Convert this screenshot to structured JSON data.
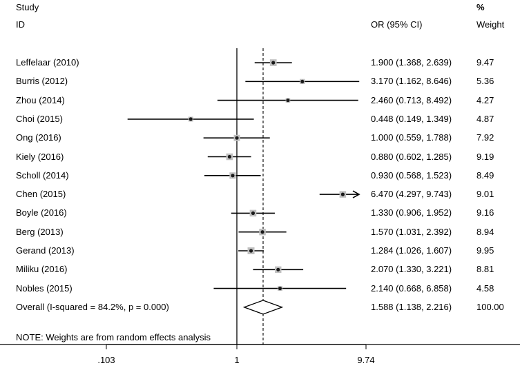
{
  "header": {
    "study_line1": "Study",
    "study_line2": "ID",
    "or_label": "OR (95% CI)",
    "pct_label": "%",
    "weight_label": "Weight"
  },
  "note": "NOTE: Weights are from random effects analysis",
  "chart_data": {
    "type": "forest",
    "scale": "log",
    "null_value": 1,
    "overall_line_value": 1.588,
    "x_axis_ticks": [
      {
        "value": 0.103,
        "label": ".103"
      },
      {
        "value": 1,
        "label": "1"
      },
      {
        "value": 9.74,
        "label": "9.74"
      }
    ],
    "xlim": [
      0.103,
      9.74
    ],
    "studies": [
      {
        "id": "Leffelaar (2010)",
        "or": 1.9,
        "lo": 1.368,
        "hi": 2.639,
        "ci_text": "1.900 (1.368, 2.639)",
        "weight": 9.47,
        "weight_text": "9.47"
      },
      {
        "id": "Burris (2012)",
        "or": 3.17,
        "lo": 1.162,
        "hi": 8.646,
        "ci_text": "3.170 (1.162, 8.646)",
        "weight": 5.36,
        "weight_text": "5.36"
      },
      {
        "id": "Zhou (2014)",
        "or": 2.46,
        "lo": 0.713,
        "hi": 8.492,
        "ci_text": "2.460 (0.713, 8.492)",
        "weight": 4.27,
        "weight_text": "4.27"
      },
      {
        "id": "Choi (2015)",
        "or": 0.448,
        "lo": 0.149,
        "hi": 1.349,
        "ci_text": "0.448 (0.149, 1.349)",
        "weight": 4.87,
        "weight_text": "4.87"
      },
      {
        "id": "Ong (2016)",
        "or": 1.0,
        "lo": 0.559,
        "hi": 1.788,
        "ci_text": "1.000 (0.559, 1.788)",
        "weight": 7.92,
        "weight_text": "7.92"
      },
      {
        "id": "Kiely (2016)",
        "or": 0.88,
        "lo": 0.602,
        "hi": 1.285,
        "ci_text": "0.880 (0.602, 1.285)",
        "weight": 9.19,
        "weight_text": "9.19"
      },
      {
        "id": "Scholl (2014)",
        "or": 0.93,
        "lo": 0.568,
        "hi": 1.523,
        "ci_text": "0.930 (0.568, 1.523)",
        "weight": 8.49,
        "weight_text": "8.49"
      },
      {
        "id": "Chen (2015)",
        "or": 6.47,
        "lo": 4.297,
        "hi": 9.743,
        "ci_text": "6.470 (4.297, 9.743)",
        "weight": 9.01,
        "weight_text": "9.01",
        "arrow_right": true
      },
      {
        "id": "Boyle (2016)",
        "or": 1.33,
        "lo": 0.906,
        "hi": 1.952,
        "ci_text": "1.330 (0.906, 1.952)",
        "weight": 9.16,
        "weight_text": "9.16"
      },
      {
        "id": "Berg (2013)",
        "or": 1.57,
        "lo": 1.031,
        "hi": 2.392,
        "ci_text": "1.570 (1.031, 2.392)",
        "weight": 8.94,
        "weight_text": "8.94"
      },
      {
        "id": "Gerand (2013)",
        "or": 1.284,
        "lo": 1.026,
        "hi": 1.607,
        "ci_text": "1.284 (1.026, 1.607)",
        "weight": 9.95,
        "weight_text": "9.95"
      },
      {
        "id": "Miliku (2016)",
        "or": 2.07,
        "lo": 1.33,
        "hi": 3.221,
        "ci_text": "2.070 (1.330, 3.221)",
        "weight": 8.81,
        "weight_text": "8.81"
      },
      {
        "id": "Nobles (2015)",
        "or": 2.14,
        "lo": 0.668,
        "hi": 6.858,
        "ci_text": "2.140 (0.668, 6.858)",
        "weight": 4.58,
        "weight_text": "4.58"
      }
    ],
    "overall": {
      "label": "Overall  (I-squared = 84.2%, p = 0.000)",
      "or": 1.588,
      "lo": 1.138,
      "hi": 2.216,
      "ci_text": "1.588 (1.138, 2.216)",
      "weight_text": "100.00"
    }
  },
  "colors": {
    "line": "#000000",
    "box_fill": "#c0c0c0",
    "point": "#1a1a1a",
    "background": "#ffffff"
  }
}
